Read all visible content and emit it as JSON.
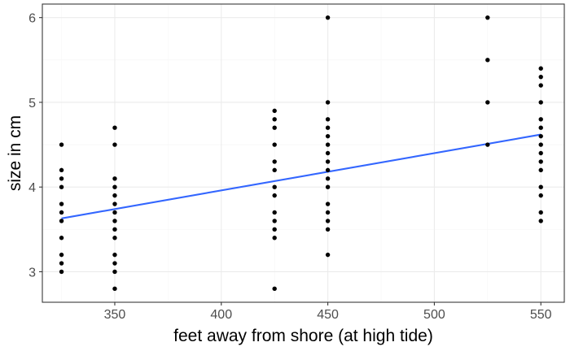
{
  "chart_data": {
    "type": "scatter",
    "xlabel": "feet away from shore (at high tide)",
    "ylabel": "size in cm",
    "xlim": [
      316,
      561
    ],
    "ylim": [
      2.64,
      6.16
    ],
    "x_ticks": [
      350,
      400,
      450,
      500,
      550
    ],
    "y_ticks": [
      3,
      4,
      5,
      6
    ],
    "x_minor_ticks": [
      325,
      375,
      425,
      475,
      525
    ],
    "y_minor_ticks": [
      3.5,
      4.5,
      5.5
    ],
    "grid": true,
    "points": [
      {
        "x": 325,
        "y": 3.0
      },
      {
        "x": 325,
        "y": 3.1
      },
      {
        "x": 325,
        "y": 3.2
      },
      {
        "x": 325,
        "y": 3.4
      },
      {
        "x": 325,
        "y": 3.6
      },
      {
        "x": 325,
        "y": 3.7
      },
      {
        "x": 325,
        "y": 3.8
      },
      {
        "x": 325,
        "y": 4.0
      },
      {
        "x": 325,
        "y": 4.1
      },
      {
        "x": 325,
        "y": 4.2
      },
      {
        "x": 325,
        "y": 4.5
      },
      {
        "x": 350,
        "y": 2.8
      },
      {
        "x": 350,
        "y": 3.0
      },
      {
        "x": 350,
        "y": 3.1
      },
      {
        "x": 350,
        "y": 3.2
      },
      {
        "x": 350,
        "y": 3.4
      },
      {
        "x": 350,
        "y": 3.5
      },
      {
        "x": 350,
        "y": 3.6
      },
      {
        "x": 350,
        "y": 3.7
      },
      {
        "x": 350,
        "y": 3.8
      },
      {
        "x": 350,
        "y": 3.9
      },
      {
        "x": 350,
        "y": 4.0
      },
      {
        "x": 350,
        "y": 4.1
      },
      {
        "x": 350,
        "y": 4.5
      },
      {
        "x": 350,
        "y": 4.7
      },
      {
        "x": 425,
        "y": 2.8
      },
      {
        "x": 425,
        "y": 3.4
      },
      {
        "x": 425,
        "y": 3.5
      },
      {
        "x": 425,
        "y": 3.6
      },
      {
        "x": 425,
        "y": 3.7
      },
      {
        "x": 425,
        "y": 3.9
      },
      {
        "x": 425,
        "y": 4.0
      },
      {
        "x": 425,
        "y": 4.2
      },
      {
        "x": 425,
        "y": 4.3
      },
      {
        "x": 425,
        "y": 4.5
      },
      {
        "x": 425,
        "y": 4.7
      },
      {
        "x": 425,
        "y": 4.8
      },
      {
        "x": 425,
        "y": 4.9
      },
      {
        "x": 450,
        "y": 3.2
      },
      {
        "x": 450,
        "y": 3.5
      },
      {
        "x": 450,
        "y": 3.6
      },
      {
        "x": 450,
        "y": 3.7
      },
      {
        "x": 450,
        "y": 3.8
      },
      {
        "x": 450,
        "y": 4.0
      },
      {
        "x": 450,
        "y": 4.1
      },
      {
        "x": 450,
        "y": 4.2
      },
      {
        "x": 450,
        "y": 4.3
      },
      {
        "x": 450,
        "y": 4.4
      },
      {
        "x": 450,
        "y": 4.5
      },
      {
        "x": 450,
        "y": 4.6
      },
      {
        "x": 450,
        "y": 4.7
      },
      {
        "x": 450,
        "y": 4.8
      },
      {
        "x": 450,
        "y": 5.0
      },
      {
        "x": 450,
        "y": 6.0
      },
      {
        "x": 525,
        "y": 4.5
      },
      {
        "x": 525,
        "y": 5.0
      },
      {
        "x": 525,
        "y": 5.5
      },
      {
        "x": 525,
        "y": 6.0
      },
      {
        "x": 550,
        "y": 3.6
      },
      {
        "x": 550,
        "y": 3.7
      },
      {
        "x": 550,
        "y": 3.9
      },
      {
        "x": 550,
        "y": 4.0
      },
      {
        "x": 550,
        "y": 4.2
      },
      {
        "x": 550,
        "y": 4.3
      },
      {
        "x": 550,
        "y": 4.4
      },
      {
        "x": 550,
        "y": 4.5
      },
      {
        "x": 550,
        "y": 4.6
      },
      {
        "x": 550,
        "y": 4.7
      },
      {
        "x": 550,
        "y": 4.8
      },
      {
        "x": 550,
        "y": 5.0
      },
      {
        "x": 550,
        "y": 5.2
      },
      {
        "x": 550,
        "y": 5.3
      },
      {
        "x": 550,
        "y": 5.4
      }
    ],
    "trend_line": {
      "type": "linear",
      "x": [
        325,
        550
      ],
      "y": [
        3.63,
        4.62
      ],
      "color": "#3366ff"
    },
    "colors": {
      "points": "#000000",
      "grid_major": "#ebebeb",
      "grid_minor": "#f5f5f5",
      "panel_border": "#333333",
      "tick_label": "#4d4d4d"
    }
  }
}
